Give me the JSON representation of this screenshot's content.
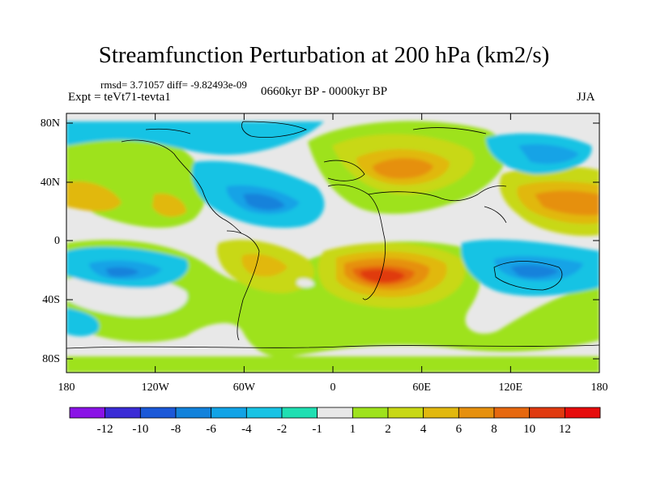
{
  "title": "Streamfunction Perturbation at 200 hPa (km2/s)",
  "stats": "rmsd= 3.71057 diff= -9.82493e-09",
  "experiment": "Expt = teVt71-tevta1",
  "period": "0660kyr BP - 0000kyr BP",
  "season": "JJA",
  "y_axis_labels": [
    "80N",
    "40N",
    "0",
    "40S",
    "80S"
  ],
  "x_axis_labels": [
    "180",
    "120W",
    "60W",
    "0",
    "60E",
    "120E",
    "180"
  ],
  "colorbar": {
    "labels": [
      "-12",
      "-10",
      "-8",
      "-6",
      "-4",
      "-2",
      "-1",
      "1",
      "2",
      "4",
      "6",
      "8",
      "10",
      "12"
    ],
    "colors": [
      "#8a13e6",
      "#3a2bd6",
      "#1b58d8",
      "#1282db",
      "#12a3e6",
      "#19c3e4",
      "#1fdfb2",
      "#e8e8e8",
      "#9ee21c",
      "#c8d815",
      "#e1b80f",
      "#e6900e",
      "#e6680f",
      "#e03a10",
      "#e60c0c"
    ]
  }
}
